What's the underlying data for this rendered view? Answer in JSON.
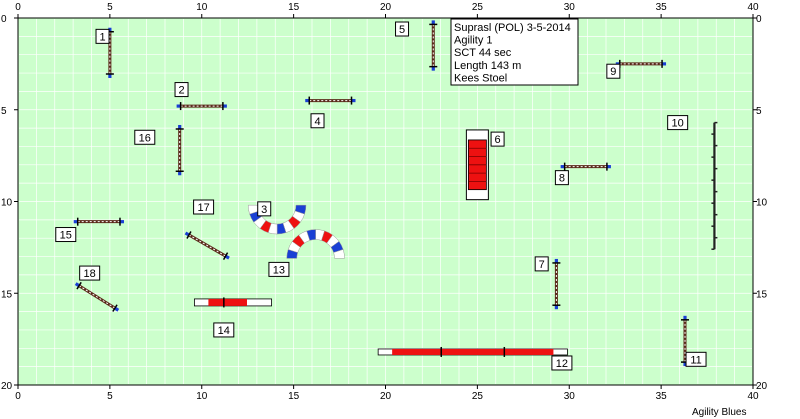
{
  "info": {
    "lines": [
      "Suprasl (POL) 3-5-2014",
      "Agility 1",
      "SCT 44 sec",
      "Length 143 m",
      "Kees Stoel"
    ]
  },
  "footer": "Agility Blues",
  "axes": {
    "x_ticks": [
      0,
      5,
      10,
      15,
      20,
      25,
      30,
      35,
      40
    ],
    "y_ticks": [
      0,
      5,
      10,
      15,
      20
    ],
    "x_range": [
      0,
      40
    ],
    "y_range": [
      0,
      20
    ]
  },
  "colors": {
    "field": "#ccffcc",
    "grid": "#ffffff",
    "pole_blue": "#1a3fd4",
    "tunnel_red": "#ee1111",
    "tunnel_blue": "#1a3fd4",
    "bar_red": "#ee1111"
  },
  "numbers": [
    {
      "label": "1",
      "x": 4.6,
      "y": 1.0
    },
    {
      "label": "2",
      "x": 8.9,
      "y": 3.9
    },
    {
      "label": "3",
      "x": 13.4,
      "y": 10.4
    },
    {
      "label": "4",
      "x": 16.3,
      "y": 5.6
    },
    {
      "label": "5",
      "x": 20.9,
      "y": 0.6
    },
    {
      "label": "6",
      "x": 26.1,
      "y": 6.6
    },
    {
      "label": "7",
      "x": 28.5,
      "y": 13.4
    },
    {
      "label": "8",
      "x": 29.6,
      "y": 8.7
    },
    {
      "label": "9",
      "x": 32.4,
      "y": 2.9
    },
    {
      "label": "10",
      "x": 35.9,
      "y": 5.7
    },
    {
      "label": "11",
      "x": 36.9,
      "y": 18.6
    },
    {
      "label": "12",
      "x": 29.6,
      "y": 18.8
    },
    {
      "label": "13",
      "x": 14.2,
      "y": 13.7
    },
    {
      "label": "14",
      "x": 11.2,
      "y": 17.0
    },
    {
      "label": "15",
      "x": 2.6,
      "y": 11.8
    },
    {
      "label": "16",
      "x": 6.9,
      "y": 6.5
    },
    {
      "label": "17",
      "x": 10.1,
      "y": 10.3
    },
    {
      "label": "18",
      "x": 3.9,
      "y": 13.9
    }
  ],
  "jumps": [
    {
      "x": 5.0,
      "y": 1.9,
      "angle": 90,
      "len": 2.3
    },
    {
      "x": 10.0,
      "y": 4.8,
      "angle": 0,
      "len": 2.3
    },
    {
      "x": 17.0,
      "y": 4.5,
      "angle": 0,
      "len": 2.3
    },
    {
      "x": 22.6,
      "y": 1.5,
      "angle": 90,
      "len": 2.3
    },
    {
      "x": 33.9,
      "y": 2.5,
      "angle": 0,
      "len": 2.3
    },
    {
      "x": 30.9,
      "y": 8.1,
      "angle": 0,
      "len": 2.3
    },
    {
      "x": 29.3,
      "y": 14.5,
      "angle": 90,
      "len": 2.3
    },
    {
      "x": 36.3,
      "y": 17.6,
      "angle": 90,
      "len": 2.3
    },
    {
      "x": 4.4,
      "y": 11.1,
      "angle": 0,
      "len": 2.3
    },
    {
      "x": 8.8,
      "y": 7.2,
      "angle": 90,
      "len": 2.3
    },
    {
      "x": 10.3,
      "y": 12.4,
      "angle": 30,
      "len": 2.3
    },
    {
      "x": 4.3,
      "y": 15.2,
      "angle": 32,
      "len": 2.3
    }
  ],
  "weave": {
    "x": 37.9,
    "y_start": 5.7,
    "y_end": 12.6
  },
  "table": {
    "x": 25.0,
    "y_top": 6.1,
    "y_bottom": 9.9
  },
  "dogwalk": {
    "x_start": 19.6,
    "x_end": 29.9,
    "y": 18.2
  },
  "seesaw": {
    "x_start": 9.6,
    "x_end": 13.8,
    "y": 15.5
  },
  "tunnels": [
    {
      "name": "tunnel-3",
      "cx": 14.1,
      "cy": 10.2,
      "r": 1.3,
      "start": 0,
      "end": 180
    },
    {
      "name": "tunnel-13",
      "cx": 16.2,
      "cy": 13.1,
      "r": 1.3,
      "start": 180,
      "end": 360
    }
  ]
}
